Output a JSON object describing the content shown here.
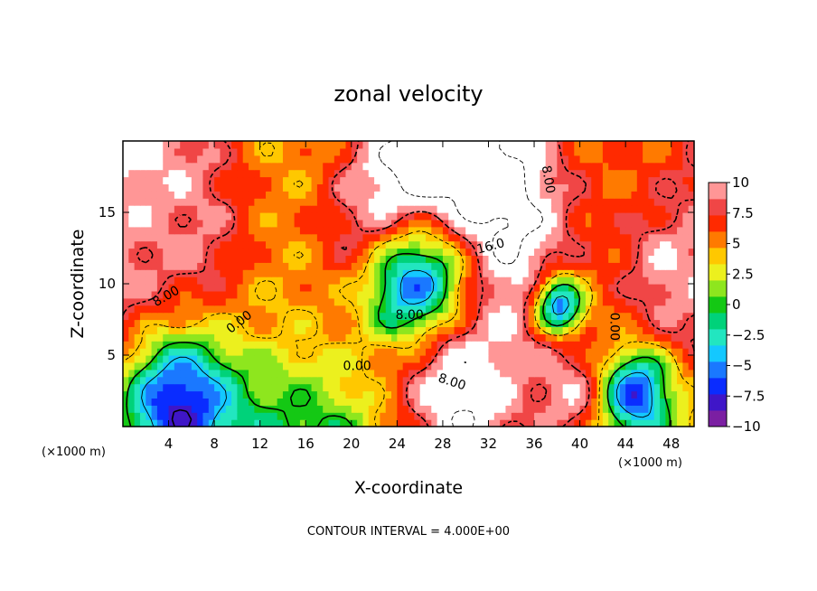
{
  "chart_data": {
    "type": "heatmap",
    "title": "zonal velocity",
    "xlabel": "X-coordinate",
    "ylabel": "Z-coordinate",
    "x_units": "(×1000 m)",
    "y_units": "(×1000 m)",
    "footnote": "CONTOUR INTERVAL = 4.000E+00",
    "xlim": [
      0,
      50
    ],
    "ylim": [
      0,
      20
    ],
    "x_ticks": [
      4,
      8,
      12,
      16,
      20,
      24,
      28,
      32,
      36,
      40,
      44,
      48
    ],
    "x_tick_labels": [
      "4",
      "8",
      "12",
      "16",
      "20",
      "24",
      "28",
      "32",
      "36",
      "40",
      "44",
      "48"
    ],
    "y_ticks": [
      5,
      10,
      15
    ],
    "y_tick_labels": [
      "5",
      "10",
      "15"
    ],
    "colorbar": {
      "range": [
        -10,
        10
      ],
      "ticks": [
        10,
        7.5,
        5,
        2.5,
        0,
        -2.5,
        -5,
        -7.5,
        -10
      ],
      "tick_labels": [
        "10",
        "7.5",
        "5",
        "2.5",
        "0",
        "−2.5",
        "−5",
        "−7.5",
        "−10"
      ],
      "colors": [
        "#7b1fa2",
        "#3f16c8",
        "#0a2cff",
        "#1a78ff",
        "#14c8ff",
        "#22e6c0",
        "#00d27a",
        "#14c814",
        "#8ee61e",
        "#ecf01e",
        "#ffc800",
        "#ff7a00",
        "#ff2a00",
        "#f04646",
        "#ff9696"
      ]
    },
    "contour_labels": [
      {
        "text": "8.00",
        "x": 3.8,
        "y": 9.1,
        "rot": -30
      },
      {
        "text": "0.00",
        "x": 10.2,
        "y": 7.3,
        "rot": -38
      },
      {
        "text": "0.00",
        "x": 20.5,
        "y": 4.2,
        "rot": 0
      },
      {
        "text": "8.00",
        "x": 28.8,
        "y": 3.1,
        "rot": 18
      },
      {
        "text": "8.00",
        "x": 25.1,
        "y": 7.8,
        "rot": 0
      },
      {
        "text": "16.0",
        "x": 32.2,
        "y": 12.6,
        "rot": -15
      },
      {
        "text": "8.00",
        "x": 37.2,
        "y": 17.3,
        "rot": 80
      },
      {
        "text": "0.00",
        "x": 43.0,
        "y": 7.0,
        "rot": 90
      }
    ],
    "field_centers": [
      {
        "x": 29,
        "y": 16,
        "value": 18,
        "r": 6
      },
      {
        "x": 28,
        "y": 12,
        "value": 14,
        "r": 6
      },
      {
        "x": 26,
        "y": 9,
        "value": -10,
        "r": 3.5
      },
      {
        "x": 38.2,
        "y": 8.2,
        "value": -10,
        "r": 1.5
      },
      {
        "x": 2,
        "y": 17,
        "value": 11,
        "r": 5
      },
      {
        "x": 4,
        "y": 13,
        "value": 9,
        "r": 4
      },
      {
        "x": 48,
        "y": 11,
        "value": 10,
        "r": 3
      },
      {
        "x": 30,
        "y": 1.8,
        "value": 12,
        "r": 5
      },
      {
        "x": 39,
        "y": 2.2,
        "value": 10,
        "r": 3
      },
      {
        "x": 5,
        "y": 1.5,
        "value": -8,
        "r": 3.5
      },
      {
        "x": 45,
        "y": 2.3,
        "value": -7,
        "r": 2
      }
    ]
  }
}
